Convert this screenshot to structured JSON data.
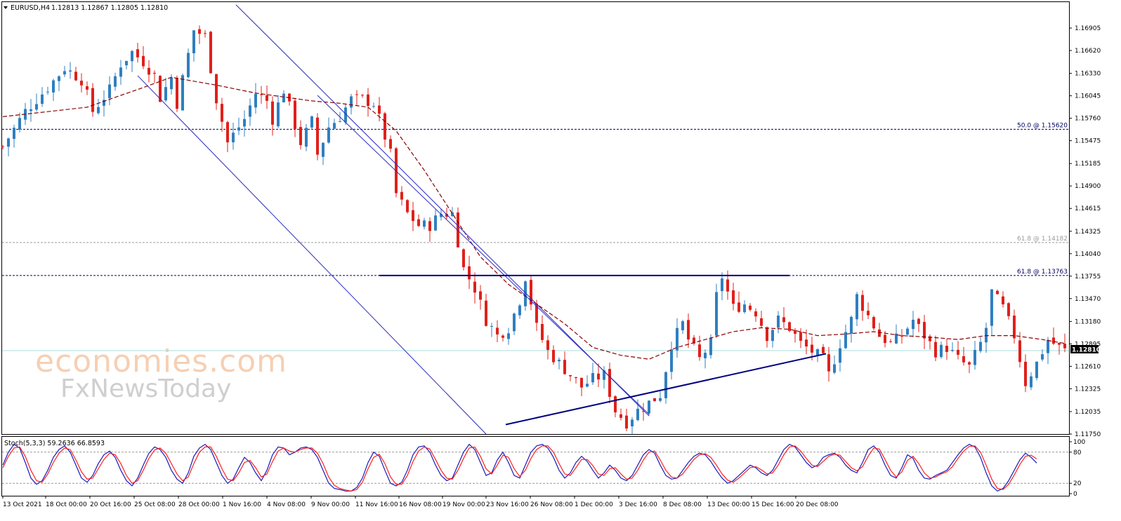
{
  "header": {
    "symbol_text": "EURUSD,H4",
    "ohlc_text": "1.12813 1.12867 1.12805 1.12810",
    "indicator_text": "Stoch(5,3,3) 59.2636 66.8593"
  },
  "watermark": {
    "line1": "economies.com",
    "line2": "FxNewsToday"
  },
  "colors": {
    "bull": "#2f7fc0",
    "bear": "#e0201b",
    "ma": "#8b0000",
    "channel": "#2b2bbd",
    "trend": "#000080",
    "stoch_main": "#1a1ab8",
    "stoch_signal": "#ff2020",
    "fib_primary": "#000060",
    "fib_secondary": "#9a9a9a",
    "price_line": "#aadddd"
  },
  "chart_data": [
    {
      "type": "candlestick",
      "symbol": "EURUSD",
      "timeframe": "H4",
      "ylim": [
        1.1175,
        1.1719
      ],
      "y_ticks": [
        "1.16905",
        "1.16620",
        "1.16330",
        "1.16045",
        "1.15760",
        "1.15475",
        "1.15185",
        "1.14900",
        "1.14615",
        "1.14325",
        "1.14040",
        "1.13755",
        "1.13470",
        "1.13180",
        "1.12895",
        "1.12610",
        "1.12325",
        "1.12035",
        "1.11750"
      ],
      "x_ticks": [
        "13 Oct 2021",
        "18 Oct 00:00",
        "20 Oct 16:00",
        "25 Oct 08:00",
        "28 Oct 00:00",
        "1 Nov 16:00",
        "4 Nov 08:00",
        "9 Nov 00:00",
        "11 Nov 16:00",
        "16 Nov 08:00",
        "19 Nov 00:00",
        "23 Nov 16:00",
        "26 Nov 08:00",
        "1 Dec 00:00",
        "3 Dec 16:00",
        "8 Dec 08:00",
        "13 Dec 00:00",
        "15 Dec 16:00",
        "20 Dec 08:00"
      ],
      "current_price": "1.12810",
      "price_path": [
        [
          0,
          1.154
        ],
        [
          4,
          1.1585
        ],
        [
          8,
          1.1615
        ],
        [
          11,
          1.164
        ],
        [
          14,
          1.1625
        ],
        [
          16,
          1.1585
        ],
        [
          19,
          1.1612
        ],
        [
          21,
          1.1645
        ],
        [
          23,
          1.166
        ],
        [
          25,
          1.1648
        ],
        [
          27,
          1.163
        ],
        [
          28,
          1.1602
        ],
        [
          30,
          1.1628
        ],
        [
          31,
          1.1595
        ],
        [
          34,
          1.1688
        ],
        [
          36,
          1.168
        ],
        [
          38,
          1.16
        ],
        [
          40,
          1.1545
        ],
        [
          43,
          1.1575
        ],
        [
          45,
          1.1608
        ],
        [
          47,
          1.1598
        ],
        [
          48,
          1.1575
        ],
        [
          50,
          1.1612
        ],
        [
          51,
          1.159
        ],
        [
          53,
          1.1545
        ],
        [
          55,
          1.1572
        ],
        [
          56,
          1.153
        ],
        [
          58,
          1.1565
        ],
        [
          60,
          1.1578
        ],
        [
          62,
          1.16
        ],
        [
          64,
          1.16
        ],
        [
          66,
          1.1595
        ],
        [
          67,
          1.1575
        ],
        [
          69,
          1.153
        ],
        [
          70,
          1.148
        ],
        [
          72,
          1.1455
        ],
        [
          74,
          1.144
        ],
        [
          76,
          1.144
        ],
        [
          78,
          1.1455
        ],
        [
          80,
          1.1455
        ],
        [
          82,
          1.1385
        ],
        [
          84,
          1.136
        ],
        [
          86,
          1.132
        ],
        [
          88,
          1.13
        ],
        [
          90,
          1.131
        ],
        [
          92,
          1.1345
        ],
        [
          93,
          1.1375
        ],
        [
          95,
          1.131
        ],
        [
          97,
          1.128
        ],
        [
          99,
          1.1265
        ],
        [
          101,
          1.125
        ],
        [
          103,
          1.1235
        ],
        [
          105,
          1.1245
        ],
        [
          107,
          1.125
        ],
        [
          109,
          1.1205
        ],
        [
          111,
          1.119
        ],
        [
          113,
          1.1205
        ],
        [
          115,
          1.1215
        ],
        [
          117,
          1.1225
        ],
        [
          119,
          1.129
        ],
        [
          121,
          1.1315
        ],
        [
          122,
          1.1295
        ],
        [
          124,
          1.127
        ],
        [
          126,
          1.129
        ],
        [
          127,
          1.135
        ],
        [
          128,
          1.1375
        ],
        [
          130,
          1.1335
        ],
        [
          132,
          1.134
        ],
        [
          134,
          1.133
        ],
        [
          136,
          1.13
        ],
        [
          138,
          1.132
        ],
        [
          140,
          1.131
        ],
        [
          142,
          1.129
        ],
        [
          144,
          1.128
        ],
        [
          146,
          1.127
        ],
        [
          147,
          1.125
        ],
        [
          149,
          1.129
        ],
        [
          151,
          1.132
        ],
        [
          152,
          1.135
        ],
        [
          154,
          1.1325
        ],
        [
          156,
          1.13
        ],
        [
          158,
          1.129
        ],
        [
          160,
          1.13
        ],
        [
          162,
          1.132
        ],
        [
          164,
          1.13
        ],
        [
          166,
          1.128
        ],
        [
          168,
          1.1285
        ],
        [
          170,
          1.127
        ],
        [
          172,
          1.126
        ],
        [
          174,
          1.129
        ],
        [
          175,
          1.131
        ],
        [
          176,
          1.1355
        ],
        [
          178,
          1.1335
        ],
        [
          180,
          1.13
        ],
        [
          181,
          1.127
        ],
        [
          182,
          1.124
        ],
        [
          184,
          1.1265
        ],
        [
          186,
          1.1295
        ],
        [
          188,
          1.1285
        ],
        [
          189,
          1.1281
        ]
      ],
      "moving_average": [
        [
          0,
          1.1578
        ],
        [
          15,
          1.159
        ],
        [
          25,
          1.1615
        ],
        [
          30,
          1.1628
        ],
        [
          38,
          1.1618
        ],
        [
          45,
          1.1608
        ],
        [
          55,
          1.1598
        ],
        [
          60,
          1.1595
        ],
        [
          65,
          1.159
        ],
        [
          70,
          1.156
        ],
        [
          75,
          1.151
        ],
        [
          80,
          1.1455
        ],
        [
          85,
          1.14
        ],
        [
          90,
          1.1365
        ],
        [
          95,
          1.134
        ],
        [
          100,
          1.1315
        ],
        [
          105,
          1.1285
        ],
        [
          110,
          1.1275
        ],
        [
          115,
          1.127
        ],
        [
          120,
          1.1285
        ],
        [
          125,
          1.1295
        ],
        [
          130,
          1.1305
        ],
        [
          135,
          1.131
        ],
        [
          140,
          1.1308
        ],
        [
          145,
          1.13
        ],
        [
          150,
          1.1302
        ],
        [
          155,
          1.1305
        ],
        [
          160,
          1.13
        ],
        [
          165,
          1.1298
        ],
        [
          170,
          1.1295
        ],
        [
          175,
          1.13
        ],
        [
          180,
          1.13
        ],
        [
          185,
          1.1295
        ],
        [
          189,
          1.129
        ]
      ],
      "levels": [
        {
          "label": "50.0 @ 1.15620",
          "price": 1.1562,
          "style": "primary"
        },
        {
          "label": "61.8 @ 1.14182",
          "price": 1.14182,
          "style": "secondary"
        },
        {
          "label": "61.8 @ 1.13763",
          "price": 1.13763,
          "style": "primary"
        }
      ],
      "trendlines": [
        {
          "kind": "channel-upper",
          "from": [
            41.5,
            1.172
          ],
          "to": [
            115,
            1.1198
          ]
        },
        {
          "kind": "channel-lower",
          "from": [
            24,
            1.163
          ],
          "to": [
            86,
            1.1175
          ]
        },
        {
          "kind": "channel-upper-ext",
          "from": [
            56,
            1.1605
          ],
          "to": [
            115,
            1.12
          ]
        },
        {
          "kind": "resistance",
          "from": [
            67,
            1.13763
          ],
          "to": [
            140,
            1.13763
          ]
        },
        {
          "kind": "support",
          "from": [
            89.5,
            1.1187
          ],
          "to": [
            146.5,
            1.1277
          ]
        }
      ]
    },
    {
      "type": "line",
      "indicator": "Stochastic Oscillator",
      "params": "5,3,3",
      "ylim": [
        0,
        100
      ],
      "y_ticks": [
        "100",
        "80",
        "20",
        "0"
      ],
      "levels": [
        80,
        20
      ],
      "series": [
        {
          "name": "main",
          "value": 59.2636,
          "values": [
            55,
            80,
            95,
            88,
            60,
            30,
            18,
            25,
            45,
            70,
            85,
            92,
            80,
            55,
            30,
            22,
            35,
            58,
            75,
            82,
            70,
            45,
            25,
            15,
            30,
            55,
            78,
            90,
            85,
            70,
            45,
            28,
            20,
            40,
            72,
            88,
            95,
            85,
            60,
            35,
            20,
            28,
            50,
            70,
            60,
            40,
            25,
            45,
            75,
            90,
            88,
            75,
            80,
            88,
            90,
            85,
            70,
            45,
            20,
            10,
            8,
            5,
            5,
            12,
            30,
            60,
            80,
            72,
            45,
            20,
            15,
            22,
            45,
            75,
            90,
            92,
            80,
            55,
            35,
            25,
            30,
            55,
            80,
            95,
            85,
            60,
            35,
            40,
            65,
            80,
            60,
            35,
            30,
            55,
            80,
            92,
            95,
            88,
            70,
            45,
            30,
            40,
            60,
            72,
            62,
            45,
            30,
            40,
            55,
            45,
            30,
            25,
            35,
            55,
            75,
            85,
            78,
            55,
            35,
            28,
            30,
            45,
            60,
            72,
            78,
            75,
            62,
            45,
            30,
            20,
            25,
            35,
            45,
            55,
            50,
            40,
            35,
            45,
            65,
            85,
            95,
            90,
            75,
            60,
            50,
            55,
            70,
            75,
            78,
            70,
            55,
            45,
            40,
            60,
            85,
            92,
            80,
            55,
            35,
            30,
            50,
            75,
            68,
            45,
            30,
            28,
            35,
            40,
            45,
            60,
            75,
            88,
            95,
            90,
            70,
            40,
            15,
            5,
            10,
            25,
            45,
            65,
            78,
            70,
            59
          ]
        },
        {
          "name": "signal",
          "value": 66.8593,
          "values": [
            50,
            72,
            88,
            90,
            72,
            45,
            25,
            22,
            38,
            60,
            78,
            88,
            85,
            65,
            42,
            28,
            30,
            48,
            66,
            78,
            75,
            58,
            35,
            20,
            25,
            45,
            68,
            84,
            88,
            78,
            58,
            38,
            25,
            32,
            58,
            80,
            90,
            90,
            72,
            48,
            28,
            25,
            40,
            60,
            64,
            50,
            32,
            38,
            62,
            82,
            88,
            82,
            80,
            85,
            88,
            88,
            78,
            58,
            32,
            16,
            10,
            7,
            5,
            8,
            22,
            48,
            70,
            76,
            58,
            32,
            18,
            18,
            35,
            62,
            82,
            90,
            86,
            66,
            45,
            30,
            28,
            45,
            68,
            88,
            90,
            72,
            48,
            38,
            55,
            74,
            70,
            48,
            33,
            45,
            68,
            85,
            92,
            92,
            80,
            58,
            38,
            35,
            50,
            66,
            66,
            54,
            38,
            35,
            48,
            50,
            38,
            28,
            30,
            45,
            65,
            80,
            82,
            65,
            45,
            32,
            30,
            38,
            52,
            66,
            75,
            77,
            70,
            55,
            38,
            26,
            22,
            30,
            40,
            50,
            52,
            46,
            38,
            40,
            55,
            75,
            90,
            92,
            82,
            68,
            55,
            52,
            62,
            72,
            76,
            74,
            62,
            50,
            44,
            52,
            72,
            88,
            86,
            66,
            45,
            32,
            42,
            64,
            72,
            58,
            40,
            30,
            32,
            38,
            42,
            52,
            68,
            82,
            91,
            92,
            80,
            55,
            28,
            10,
            8,
            18,
            36,
            56,
            72,
            74,
            67
          ]
        }
      ]
    }
  ]
}
